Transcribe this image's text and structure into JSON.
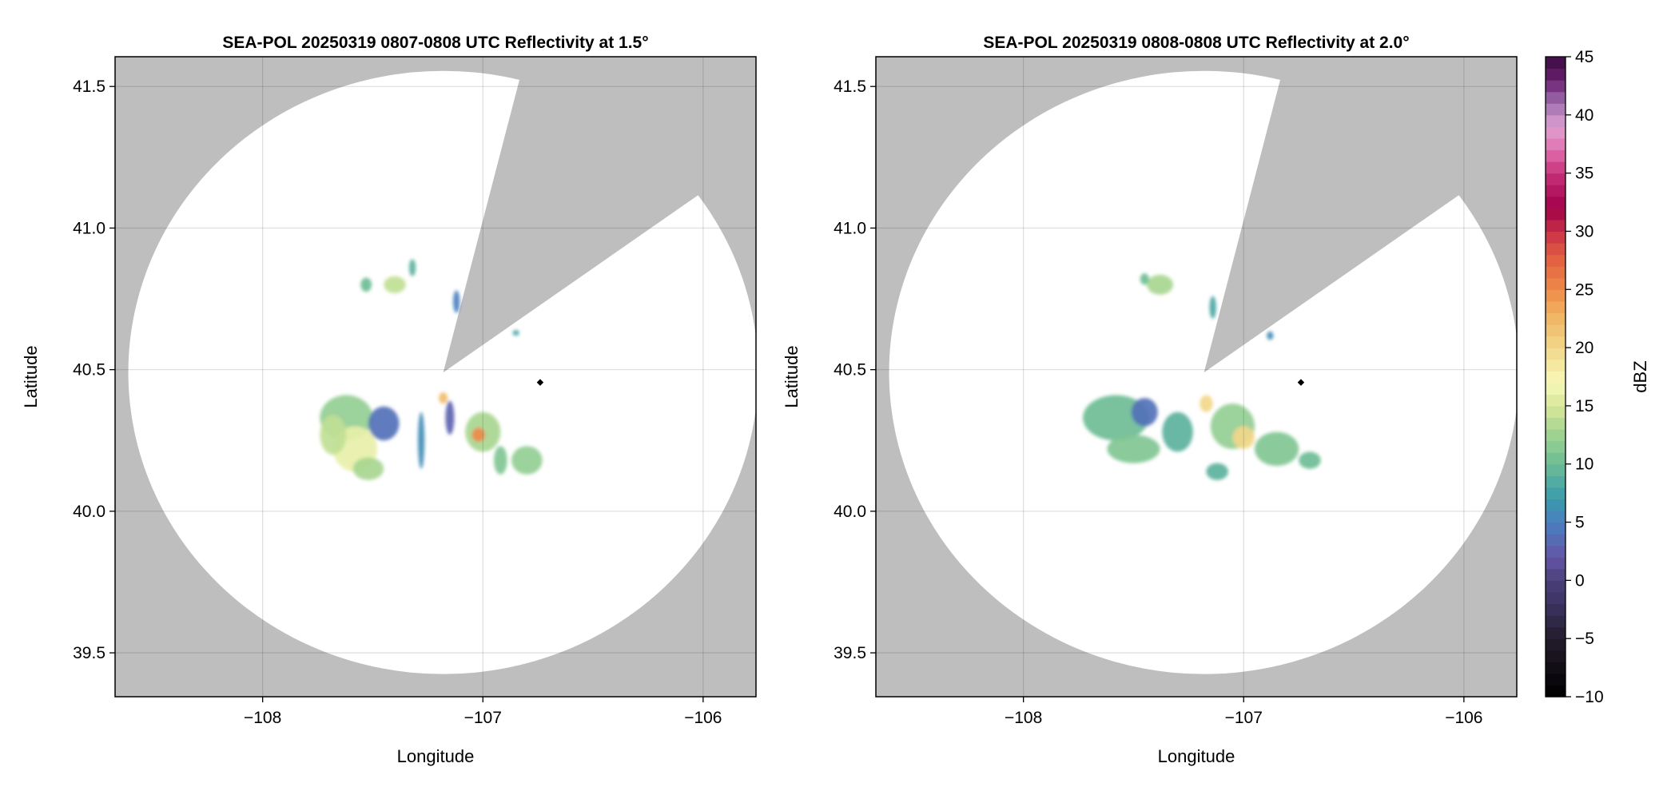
{
  "chart_data": [
    {
      "type": "heatmap",
      "title": "SEA-POL 20250319 0807-0808 UTC Reflectivity at 1.5°",
      "xlabel": "Longitude",
      "ylabel": "Latitude",
      "xlim": [
        -108.67,
        -105.76
      ],
      "ylim": [
        39.345,
        41.605
      ],
      "xticks": [
        -108,
        -107,
        -106
      ],
      "xtick_labels": [
        "−108",
        "−107",
        "−106"
      ],
      "yticks": [
        39.5,
        40.0,
        40.5,
        41.0,
        41.5
      ],
      "ytick_labels": [
        "39.5",
        "40.0",
        "40.5",
        "41.0",
        "41.5"
      ],
      "grid": true,
      "radar_center": [
        -107.18,
        40.49
      ],
      "coverage_radius_deg": [
        1.43,
        1.065
      ],
      "blocked_sector_azimuth_deg": [
        14,
        54
      ],
      "marker": [
        -106.74,
        40.455
      ],
      "echoes": [
        {
          "lon": -107.62,
          "lat": 40.33,
          "rlon": 0.12,
          "rlat": 0.08,
          "dbz": 12
        },
        {
          "lon": -107.58,
          "lat": 40.22,
          "rlon": 0.1,
          "rlat": 0.08,
          "dbz": 16
        },
        {
          "lon": -107.68,
          "lat": 40.27,
          "rlon": 0.06,
          "rlat": 0.07,
          "dbz": 14
        },
        {
          "lon": -107.45,
          "lat": 40.31,
          "rlon": 0.07,
          "rlat": 0.06,
          "dbz": 4
        },
        {
          "lon": -107.52,
          "lat": 40.15,
          "rlon": 0.07,
          "rlat": 0.04,
          "dbz": 13
        },
        {
          "lon": -107.28,
          "lat": 40.25,
          "rlon": 0.015,
          "rlat": 0.1,
          "dbz": 6
        },
        {
          "lon": -107.15,
          "lat": 40.33,
          "rlon": 0.02,
          "rlat": 0.06,
          "dbz": 3
        },
        {
          "lon": -107.18,
          "lat": 40.4,
          "rlon": 0.02,
          "rlat": 0.02,
          "dbz": 22
        },
        {
          "lon": -107.0,
          "lat": 40.28,
          "rlon": 0.08,
          "rlat": 0.07,
          "dbz": 13
        },
        {
          "lon": -107.02,
          "lat": 40.27,
          "rlon": 0.03,
          "rlat": 0.025,
          "dbz": 25
        },
        {
          "lon": -106.92,
          "lat": 40.18,
          "rlon": 0.03,
          "rlat": 0.05,
          "dbz": 11
        },
        {
          "lon": -106.8,
          "lat": 40.18,
          "rlon": 0.07,
          "rlat": 0.05,
          "dbz": 12
        },
        {
          "lon": -107.53,
          "lat": 40.8,
          "rlon": 0.025,
          "rlat": 0.025,
          "dbz": 10
        },
        {
          "lon": -107.4,
          "lat": 40.8,
          "rlon": 0.05,
          "rlat": 0.03,
          "dbz": 14
        },
        {
          "lon": -107.32,
          "lat": 40.86,
          "rlon": 0.015,
          "rlat": 0.03,
          "dbz": 9
        },
        {
          "lon": -107.12,
          "lat": 40.74,
          "rlon": 0.015,
          "rlat": 0.04,
          "dbz": 5
        },
        {
          "lon": -106.85,
          "lat": 40.63,
          "rlon": 0.015,
          "rlat": 0.01,
          "dbz": 8
        }
      ]
    },
    {
      "type": "heatmap",
      "title": "SEA-POL 20250319 0808-0808 UTC Reflectivity at 2.0°",
      "xlabel": "Longitude",
      "ylabel": "Latitude",
      "xlim": [
        -108.67,
        -105.76
      ],
      "ylim": [
        39.345,
        41.605
      ],
      "xticks": [
        -108,
        -107,
        -106
      ],
      "xtick_labels": [
        "−108",
        "−107",
        "−106"
      ],
      "yticks": [
        39.5,
        40.0,
        40.5,
        41.0,
        41.5
      ],
      "ytick_labels": [
        "39.5",
        "40.0",
        "40.5",
        "41.0",
        "41.5"
      ],
      "grid": true,
      "radar_center": [
        -107.18,
        40.49
      ],
      "coverage_radius_deg": [
        1.43,
        1.065
      ],
      "blocked_sector_azimuth_deg": [
        14,
        54
      ],
      "marker": [
        -106.74,
        40.455
      ],
      "echoes": [
        {
          "lon": -107.58,
          "lat": 40.33,
          "rlon": 0.15,
          "rlat": 0.08,
          "dbz": 10
        },
        {
          "lon": -107.5,
          "lat": 40.22,
          "rlon": 0.12,
          "rlat": 0.05,
          "dbz": 11
        },
        {
          "lon": -107.45,
          "lat": 40.35,
          "rlon": 0.06,
          "rlat": 0.05,
          "dbz": 4
        },
        {
          "lon": -107.3,
          "lat": 40.28,
          "rlon": 0.07,
          "rlat": 0.07,
          "dbz": 9
        },
        {
          "lon": -107.17,
          "lat": 40.38,
          "rlon": 0.03,
          "rlat": 0.03,
          "dbz": 20
        },
        {
          "lon": -107.05,
          "lat": 40.3,
          "rlon": 0.1,
          "rlat": 0.08,
          "dbz": 12
        },
        {
          "lon": -107.0,
          "lat": 40.26,
          "rlon": 0.05,
          "rlat": 0.04,
          "dbz": 20
        },
        {
          "lon": -106.85,
          "lat": 40.22,
          "rlon": 0.1,
          "rlat": 0.06,
          "dbz": 11
        },
        {
          "lon": -106.7,
          "lat": 40.18,
          "rlon": 0.05,
          "rlat": 0.03,
          "dbz": 10
        },
        {
          "lon": -107.12,
          "lat": 40.14,
          "rlon": 0.05,
          "rlat": 0.03,
          "dbz": 9
        },
        {
          "lon": -107.38,
          "lat": 40.8,
          "rlon": 0.06,
          "rlat": 0.035,
          "dbz": 13
        },
        {
          "lon": -107.45,
          "lat": 40.82,
          "rlon": 0.02,
          "rlat": 0.02,
          "dbz": 10
        },
        {
          "lon": -107.14,
          "lat": 40.72,
          "rlon": 0.015,
          "rlat": 0.04,
          "dbz": 8
        },
        {
          "lon": -106.88,
          "lat": 40.62,
          "rlon": 0.015,
          "rlat": 0.015,
          "dbz": 6
        }
      ]
    }
  ],
  "colorbar": {
    "label": "dBZ",
    "range": [
      -10,
      45
    ],
    "ticks": [
      -10,
      -5,
      0,
      5,
      10,
      15,
      20,
      25,
      30,
      35,
      40,
      45
    ],
    "tick_labels": [
      "−10",
      "−5",
      "0",
      "5",
      "10",
      "15",
      "20",
      "25",
      "30",
      "35",
      "40",
      "45"
    ]
  },
  "colors": {
    "no_coverage": "#bebebe",
    "coverage": "#ffffff",
    "grid": "#d8d8d8",
    "marker": "#000000"
  }
}
